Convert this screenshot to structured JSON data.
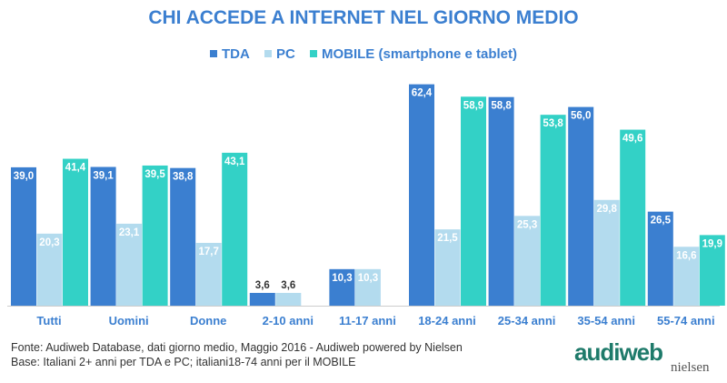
{
  "chart_data": {
    "type": "bar",
    "title": "CHI ACCEDE A INTERNET NEL GIORNO MEDIO",
    "categories": [
      "Tutti",
      "Uomini",
      "Donne",
      "2-10 anni",
      "11-17 anni",
      "18-24 anni",
      "25-34 anni",
      "35-54 anni",
      "55-74 anni"
    ],
    "series": [
      {
        "name": "TDA",
        "color": "#3b7fd0",
        "values": [
          39.0,
          39.1,
          38.8,
          3.6,
          10.3,
          62.4,
          58.8,
          56.0,
          26.5
        ]
      },
      {
        "name": "PC",
        "color": "#b3dbee",
        "values": [
          20.3,
          23.1,
          17.7,
          3.6,
          10.3,
          21.5,
          25.3,
          29.8,
          16.6
        ]
      },
      {
        "name": "MOBILE (smartphone e tablet)",
        "color": "#33d1c6",
        "values": [
          41.4,
          39.5,
          43.1,
          null,
          null,
          58.9,
          53.8,
          49.6,
          19.9
        ]
      }
    ],
    "ylim": [
      0,
      65
    ],
    "grid": false,
    "legend": "top"
  },
  "footer": {
    "source": "Fonte: Audiweb Database, dati giorno medio, Maggio 2016 - Audiweb powered by Nielsen",
    "base": "Base: Italiani 2+ anni per TDA e PC; italiani18-74 anni per il MOBILE"
  },
  "logo": {
    "main": "audiweb",
    "sub": "nielsen"
  }
}
